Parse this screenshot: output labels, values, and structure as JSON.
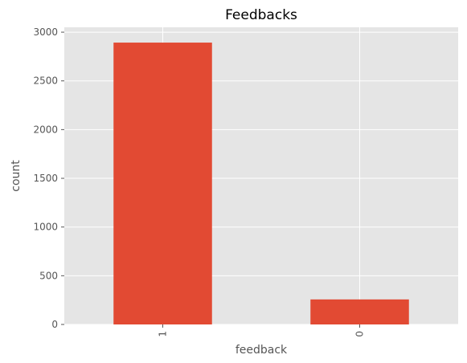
{
  "chart_data": {
    "type": "bar",
    "title": "Feedbacks",
    "xlabel": "feedback",
    "ylabel": "count",
    "categories": [
      "1",
      "0"
    ],
    "values": [
      2893,
      257
    ],
    "ylim": [
      0,
      3050
    ],
    "yticks": [
      0,
      500,
      1000,
      1500,
      2000,
      2500,
      3000
    ],
    "grid": true,
    "legend": "none",
    "bar_color": "#E24A33",
    "background_color": "#E5E5E5",
    "grid_color": "#FFFFFF"
  }
}
